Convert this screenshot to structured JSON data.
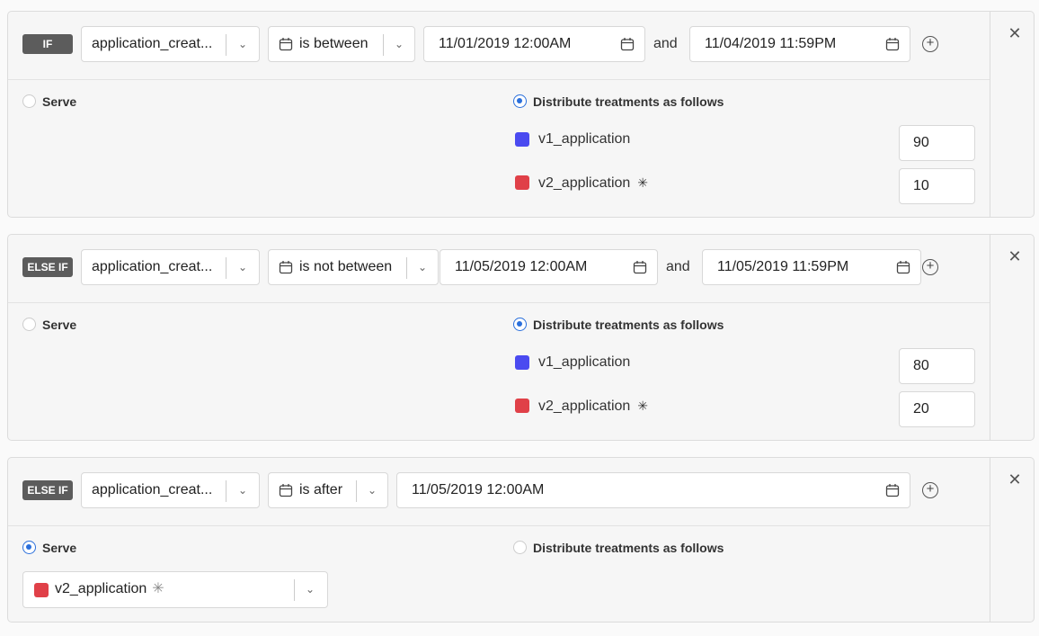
{
  "colors": {
    "v1": "#4a4af0",
    "v2": "#e04048",
    "accent": "#2a6fdb"
  },
  "rules": [
    {
      "badge": "IF",
      "field": "application_creat...",
      "operator": "is between",
      "dates": [
        "11/01/2019 12:00AM",
        "11/04/2019 11:59PM"
      ],
      "and_label": "and",
      "serve_label": "Serve",
      "distribute_label": "Distribute treatments as follows",
      "mode": "distribute",
      "treatments": [
        {
          "name": "v1_application",
          "value": "90"
        },
        {
          "name": "v2_application",
          "value": "10",
          "star": "✳"
        }
      ]
    },
    {
      "badge": "ELSE IF",
      "field": "application_creat...",
      "operator": "is not between",
      "dates": [
        "11/05/2019 12:00AM",
        "11/05/2019 11:59PM"
      ],
      "and_label": "and",
      "serve_label": "Serve",
      "distribute_label": "Distribute treatments as follows",
      "mode": "distribute",
      "treatments": [
        {
          "name": "v1_application",
          "value": "80"
        },
        {
          "name": "v2_application",
          "value": "20",
          "star": "✳"
        }
      ]
    },
    {
      "badge": "ELSE IF",
      "field": "application_creat...",
      "operator": "is after",
      "dates": [
        "11/05/2019 12:00AM"
      ],
      "serve_label": "Serve",
      "distribute_label": "Distribute treatments as follows",
      "mode": "serve",
      "served": {
        "name": "v2_application",
        "star": "✳"
      }
    }
  ]
}
